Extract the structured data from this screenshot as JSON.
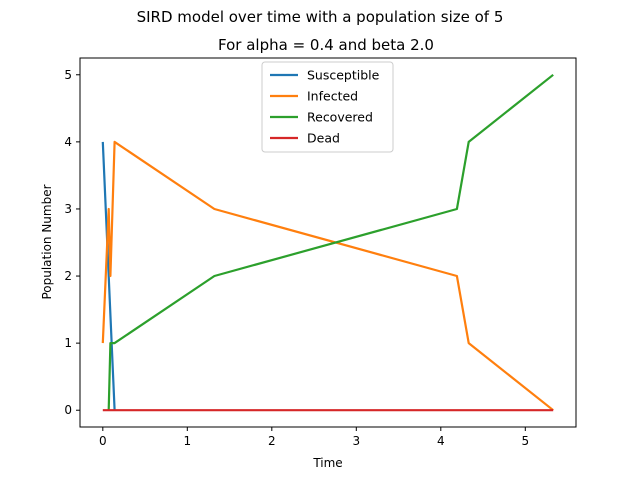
{
  "chart_data": {
    "type": "line",
    "suptitle": "SIRD model over time with a population size of 5",
    "title": "For alpha = 0.4 and beta 2.0",
    "xlabel": "Time",
    "ylabel": "Population Number",
    "xlim": [
      -0.27,
      5.6
    ],
    "ylim": [
      -0.25,
      5.25
    ],
    "xticks": [
      0,
      1,
      2,
      3,
      4,
      5
    ],
    "yticks": [
      0,
      1,
      2,
      3,
      4,
      5
    ],
    "grid": false,
    "legend_position": "top-center",
    "series": [
      {
        "name": "Susceptible",
        "color": "#1f77b4",
        "x": [
          0.0,
          0.07,
          0.14
        ],
        "y": [
          4,
          2,
          0
        ]
      },
      {
        "name": "Infected",
        "color": "#ff7f0e",
        "x": [
          0.0,
          0.07,
          0.09,
          0.14,
          1.32,
          4.19,
          4.33,
          5.33
        ],
        "y": [
          1,
          3,
          2,
          4,
          3,
          2,
          1,
          0
        ]
      },
      {
        "name": "Recovered",
        "color": "#2ca02c",
        "x": [
          0.07,
          0.09,
          0.14,
          1.32,
          4.19,
          4.33,
          5.33
        ],
        "y": [
          0,
          1,
          1,
          2,
          3,
          4,
          5
        ]
      },
      {
        "name": "Dead",
        "color": "#d62728",
        "x": [
          0.0,
          5.33
        ],
        "y": [
          0,
          0
        ]
      }
    ]
  }
}
